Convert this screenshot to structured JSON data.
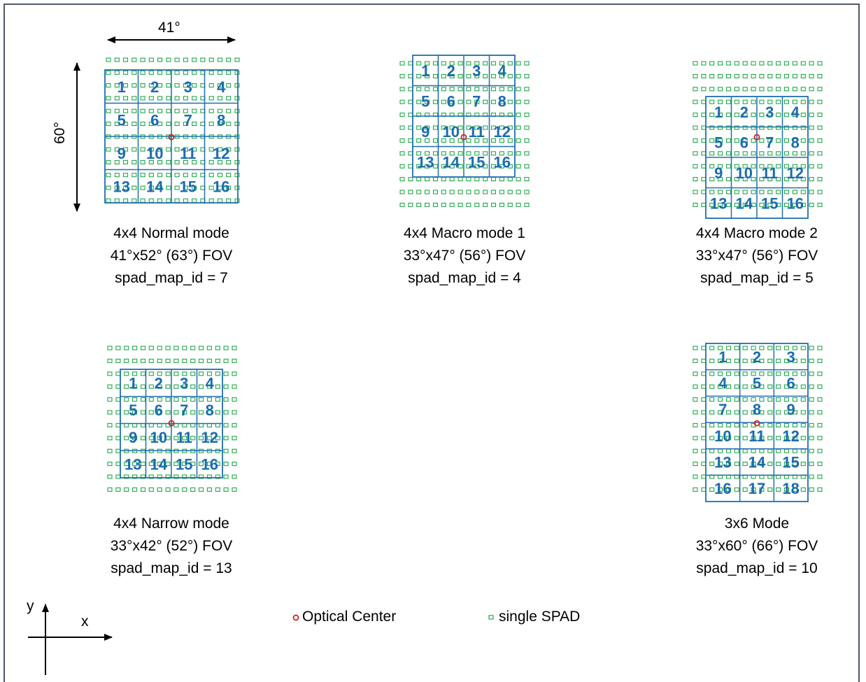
{
  "colors": {
    "border": "#4d5a68",
    "zone": "#1f6fb0",
    "zone_text": "#1a6cb0",
    "spad": "#22a84a",
    "center": "#d21e1e",
    "text": "#000000"
  },
  "dims": {
    "width_label": "41°",
    "height_label": "60°"
  },
  "axes": {
    "x_label": "x",
    "y_label": "y"
  },
  "legend": {
    "center_label": "Optical Center",
    "spad_label": "single SPAD"
  },
  "panels": [
    {
      "name": "4x4 Normal mode",
      "fov": "41°x52° (63°) FOV",
      "map": "spad_map_id = 7",
      "cols": 4,
      "zones": [
        "1",
        "2",
        "3",
        "4",
        "5",
        "6",
        "7",
        "8",
        "9",
        "10",
        "11",
        "12",
        "13",
        "14",
        "15",
        "16"
      ]
    },
    {
      "name": "4x4 Macro mode 1",
      "fov": "33°x47° (56°) FOV",
      "map": "spad_map_id = 4",
      "cols": 4,
      "zones": [
        "1",
        "2",
        "3",
        "4",
        "5",
        "6",
        "7",
        "8",
        "9",
        "10",
        "11",
        "12",
        "13",
        "14",
        "15",
        "16"
      ]
    },
    {
      "name": "4x4 Macro mode 2",
      "fov": "33°x47° (56°) FOV",
      "map": "spad_map_id = 5",
      "cols": 4,
      "zones": [
        "1",
        "2",
        "3",
        "4",
        "5",
        "6",
        "7",
        "8",
        "9",
        "10",
        "11",
        "12",
        "13",
        "14",
        "15",
        "16"
      ]
    },
    {
      "name": "4x4 Narrow mode",
      "fov": "33°x42° (52°) FOV",
      "map": "spad_map_id = 13",
      "cols": 4,
      "zones": [
        "1",
        "2",
        "3",
        "4",
        "5",
        "6",
        "7",
        "8",
        "9",
        "10",
        "11",
        "12",
        "13",
        "14",
        "15",
        "16"
      ]
    },
    {
      "name": "3x6 Mode",
      "fov": "33°x60° (66°) FOV",
      "map": "spad_map_id = 10",
      "cols": 3,
      "zones": [
        "1",
        "2",
        "3",
        "4",
        "5",
        "6",
        "7",
        "8",
        "9",
        "10",
        "11",
        "12",
        "13",
        "14",
        "15",
        "16",
        "17",
        "18"
      ]
    }
  ]
}
